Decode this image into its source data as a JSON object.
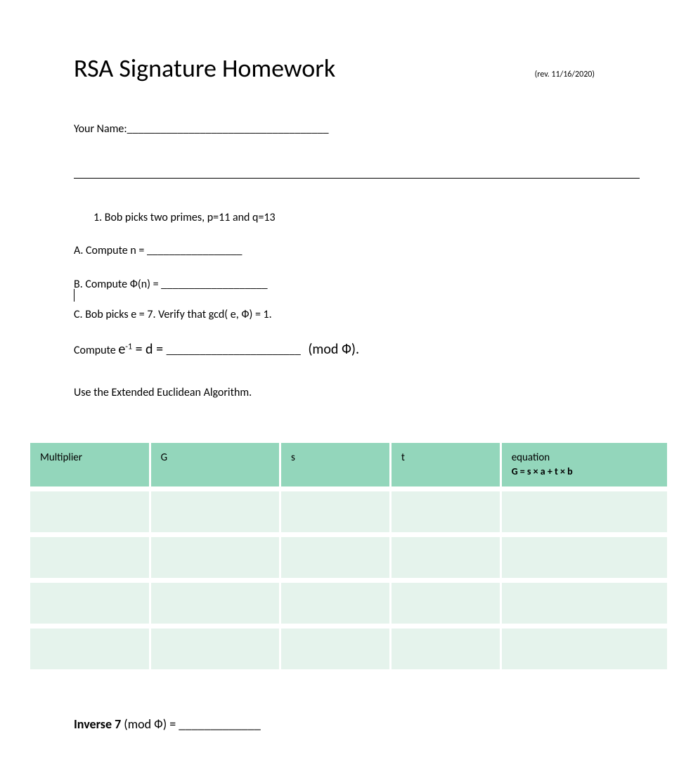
{
  "document": {
    "title": "RSA Signature Homework",
    "revision": "(rev. 11/16/2020)",
    "name_label": "Your Name:____________________________________",
    "question1": "1.   Bob picks two primes, p=11 and q=13",
    "partA": "A. Compute n = _________________",
    "partB": "B. Compute Ф(n) = ___________________",
    "partC": "C.  Bob picks e = 7.  Verify that gcd( e, Ф) = 1.",
    "compute_prefix": "Compute ",
    "compute_e": "e",
    "compute_exp": "-1",
    "compute_eq": " = d = ",
    "compute_blank": "________________________",
    "compute_mod": "  (mod Ф).",
    "algo_text": "Use the Extended Euclidean Algorithm.",
    "inverse_bold": "Inverse  7",
    "inverse_rest": " (mod Ф) = _____________"
  },
  "table": {
    "header_bg": "#93d6bb",
    "row_bg": "#e5f3ec",
    "columns": {
      "multiplier": "Multiplier",
      "g": "G",
      "s": "s",
      "t": "t",
      "equation": "equation",
      "equation_sub": "G = s × a + t × b"
    },
    "row_count": 4
  },
  "styling": {
    "background": "#ffffff",
    "text_color": "#000000",
    "title_fontsize": 36,
    "body_fontsize": 16,
    "revision_fontsize": 12,
    "table_fontsize": 15,
    "inverse_fontsize": 18,
    "font_family": "Calibri"
  }
}
